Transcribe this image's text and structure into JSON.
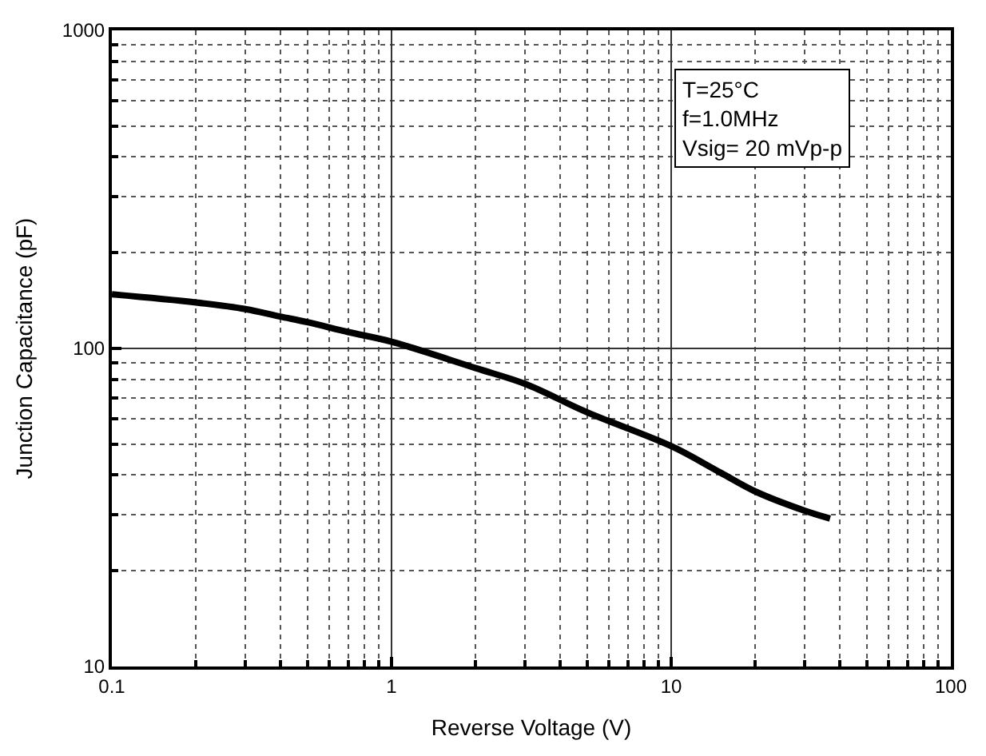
{
  "chart_data": {
    "type": "line",
    "xlabel": "Reverse Voltage (V)",
    "ylabel": "Junction Capacitance (pF)",
    "log": "xy",
    "x": [
      0.1,
      0.2,
      0.3,
      0.4,
      0.5,
      0.7,
      1,
      2,
      3,
      5,
      10,
      15,
      20,
      30,
      37
    ],
    "series": [
      {
        "color": "#000000",
        "values": [
          148,
          139.5,
          133,
          126,
          121,
          112.6,
          105,
          86.7,
          77.4,
          63,
          49.3,
          40.7,
          35.5,
          30.9,
          29.2
        ]
      }
    ],
    "xlim": [
      0.1,
      100
    ],
    "xticks": [
      0.1,
      1,
      10,
      100
    ],
    "ylim": [
      10,
      1000
    ],
    "yticks": [
      10,
      100,
      1000
    ],
    "grid": true,
    "legend": false,
    "marker": "none",
    "line_style": "solid",
    "annotations": [
      "T=25°C\nf=1.0MHz\nVsig= 20 mVp-p"
    ]
  }
}
